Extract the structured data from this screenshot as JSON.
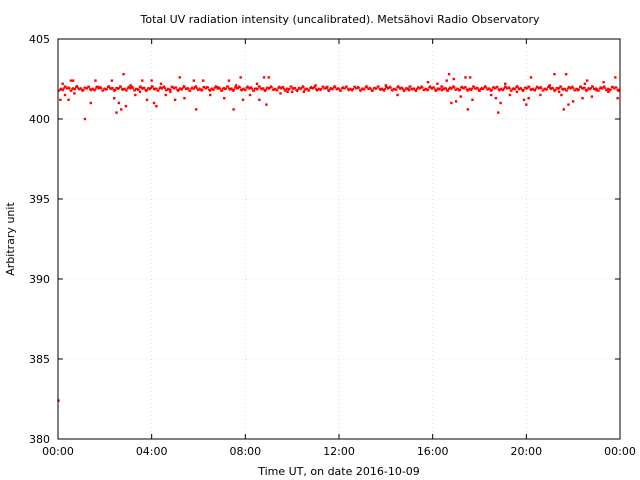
{
  "chart_data": {
    "type": "scatter",
    "title": "Total UV radiation intensity (uncalibrated). Metsähovi Radio Observatory",
    "xlabel": "Time UT, on date 2016-10-09",
    "ylabel": "Arbitrary unit",
    "x_unit": "hours",
    "xlim": [
      0,
      24
    ],
    "ylim": [
      380,
      405
    ],
    "x_ticks": [
      {
        "value": 0,
        "label": "00:00"
      },
      {
        "value": 4,
        "label": "04:00"
      },
      {
        "value": 8,
        "label": "08:00"
      },
      {
        "value": 12,
        "label": "12:00"
      },
      {
        "value": 16,
        "label": "16:00"
      },
      {
        "value": 20,
        "label": "20:00"
      },
      {
        "value": 24,
        "label": "00:00"
      }
    ],
    "y_ticks": [
      380,
      385,
      390,
      395,
      400,
      405
    ],
    "grid": true,
    "marker_color": "#ff0000",
    "series": [
      {
        "baseline": 401.9,
        "points": [
          [
            0.02,
            382.4
          ],
          [
            0.1,
            401.2
          ],
          [
            0.2,
            402.2
          ],
          [
            0.3,
            401.5
          ],
          [
            0.45,
            401.2
          ],
          [
            0.55,
            402.4
          ],
          [
            0.65,
            402.4
          ],
          [
            0.7,
            401.6
          ],
          [
            1.15,
            400.0
          ],
          [
            1.4,
            401.0
          ],
          [
            1.6,
            402.4
          ],
          [
            1.7,
            402.0
          ],
          [
            2.3,
            402.4
          ],
          [
            2.4,
            401.3
          ],
          [
            2.5,
            400.4
          ],
          [
            2.6,
            401.0
          ],
          [
            2.7,
            400.6
          ],
          [
            2.8,
            402.8
          ],
          [
            2.9,
            400.8
          ],
          [
            3.1,
            402.1
          ],
          [
            3.3,
            401.5
          ],
          [
            3.5,
            401.7
          ],
          [
            3.6,
            402.4
          ],
          [
            3.8,
            401.2
          ],
          [
            4.0,
            402.4
          ],
          [
            4.1,
            401.0
          ],
          [
            4.2,
            400.8
          ],
          [
            4.4,
            402.2
          ],
          [
            4.6,
            401.5
          ],
          [
            4.8,
            401.7
          ],
          [
            5.0,
            401.2
          ],
          [
            5.2,
            402.6
          ],
          [
            5.4,
            401.3
          ],
          [
            5.8,
            402.4
          ],
          [
            5.9,
            400.6
          ],
          [
            6.2,
            402.4
          ],
          [
            6.5,
            401.5
          ],
          [
            6.8,
            402.0
          ],
          [
            7.1,
            401.3
          ],
          [
            7.3,
            402.4
          ],
          [
            7.5,
            400.6
          ],
          [
            7.6,
            402.1
          ],
          [
            7.8,
            402.6
          ],
          [
            7.9,
            401.2
          ],
          [
            8.2,
            401.5
          ],
          [
            8.5,
            402.2
          ],
          [
            8.6,
            401.2
          ],
          [
            8.8,
            402.6
          ],
          [
            8.9,
            400.9
          ],
          [
            9.0,
            402.6
          ],
          [
            9.5,
            401.6
          ],
          [
            9.8,
            401.7
          ],
          [
            10.0,
            401.7
          ],
          [
            10.5,
            401.7
          ],
          [
            11.0,
            402.1
          ],
          [
            11.5,
            402.0
          ],
          [
            14.0,
            402.1
          ],
          [
            14.5,
            401.5
          ],
          [
            15.0,
            401.8
          ],
          [
            15.8,
            402.3
          ],
          [
            16.2,
            402.2
          ],
          [
            16.4,
            401.8
          ],
          [
            16.6,
            402.4
          ],
          [
            16.7,
            402.8
          ],
          [
            16.8,
            401.0
          ],
          [
            16.9,
            402.5
          ],
          [
            17.0,
            401.1
          ],
          [
            17.2,
            401.4
          ],
          [
            17.4,
            402.6
          ],
          [
            17.5,
            400.6
          ],
          [
            17.6,
            402.6
          ],
          [
            17.7,
            401.2
          ],
          [
            18.0,
            401.8
          ],
          [
            18.5,
            401.5
          ],
          [
            18.7,
            401.3
          ],
          [
            18.8,
            400.4
          ],
          [
            18.9,
            401.0
          ],
          [
            19.1,
            402.2
          ],
          [
            19.3,
            401.5
          ],
          [
            19.6,
            401.7
          ],
          [
            19.9,
            401.2
          ],
          [
            20.0,
            400.9
          ],
          [
            20.1,
            401.3
          ],
          [
            20.2,
            402.6
          ],
          [
            20.6,
            401.5
          ],
          [
            21.0,
            402.1
          ],
          [
            21.2,
            402.8
          ],
          [
            21.4,
            401.7
          ],
          [
            21.5,
            401.5
          ],
          [
            21.6,
            400.6
          ],
          [
            21.7,
            402.8
          ],
          [
            21.8,
            400.9
          ],
          [
            22.0,
            401.1
          ],
          [
            22.2,
            401.8
          ],
          [
            22.4,
            401.3
          ],
          [
            22.5,
            402.2
          ],
          [
            22.6,
            402.4
          ],
          [
            22.8,
            401.4
          ],
          [
            23.0,
            401.8
          ],
          [
            23.3,
            402.3
          ],
          [
            23.5,
            401.7
          ],
          [
            23.8,
            402.6
          ],
          [
            23.9,
            401.3
          ]
        ]
      }
    ]
  }
}
